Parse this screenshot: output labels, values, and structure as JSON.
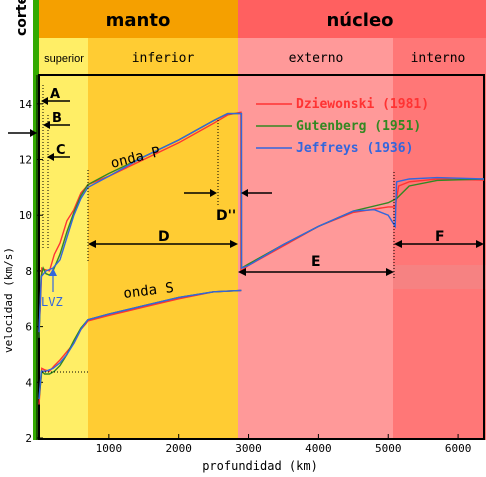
{
  "header": {
    "crust_label": "corteza",
    "mantle_label": "manto",
    "core_label": "núcleo",
    "upper_mantle_label": "superior",
    "lower_mantle_label": "inferior",
    "outer_core_label": "externo",
    "inner_core_label": "interno"
  },
  "colors": {
    "crust": "#33aa00",
    "mantle_header": "#f5a000",
    "core_header": "#ff6060",
    "upper_mantle": "#ffee66",
    "lower_mantle": "#ffcc33",
    "outer_core": "#ff9999",
    "inner_core": "#ff7777",
    "dziewonski": "#ff3333",
    "gutenberg": "#338822",
    "jeffreys": "#3366dd"
  },
  "chart_data": {
    "type": "line",
    "xlabel": "profundidad (km)",
    "ylabel": "velocidad (km/s)",
    "xlim": [
      0,
      6371
    ],
    "ylim": [
      2,
      15
    ],
    "xticks": [
      1000,
      2000,
      3000,
      4000,
      5000,
      6000
    ],
    "yticks": [
      2,
      4,
      6,
      8,
      10,
      12,
      14
    ],
    "legend_position": "top-right",
    "legend": [
      "Dziewonski (1981)",
      "Gutenberg (1951)",
      "Jeffreys (1936)"
    ],
    "annotations": {
      "p_wave": "onda P",
      "s_wave": "onda S",
      "lvz": "LVZ",
      "a": "A",
      "b": "B",
      "c": "C",
      "d": "D",
      "d2": "D''",
      "e": "E",
      "f": "F"
    },
    "series": [
      {
        "name": "Dziewonski (1981)",
        "wave": "P",
        "x": [
          0,
          20,
          40,
          80,
          150,
          220,
          300,
          400,
          500,
          600,
          670,
          700,
          1000,
          1500,
          2000,
          2500,
          2700,
          2890,
          2891,
          3000,
          3500,
          4000,
          4500,
          5000,
          5100,
          5150,
          5300,
          5700,
          6371
        ],
        "y": [
          5.8,
          6.8,
          8.1,
          8.05,
          8.0,
          8.6,
          9.0,
          9.8,
          10.2,
          10.8,
          11.0,
          11.1,
          11.4,
          12.0,
          12.6,
          13.3,
          13.6,
          13.7,
          8.0,
          8.2,
          8.9,
          9.6,
          10.1,
          10.3,
          10.3,
          11.05,
          11.2,
          11.3,
          11.26
        ]
      },
      {
        "name": "Dziewonski (1981)",
        "wave": "S",
        "x": [
          0,
          20,
          40,
          80,
          150,
          220,
          300,
          400,
          500,
          600,
          670,
          700,
          1000,
          1500,
          2000,
          2500,
          2891
        ],
        "y": [
          3.2,
          3.9,
          4.5,
          4.45,
          4.4,
          4.6,
          4.8,
          5.1,
          5.4,
          5.9,
          6.1,
          6.2,
          6.4,
          6.7,
          7.0,
          7.25,
          7.3
        ]
      },
      {
        "name": "Gutenberg (1951)",
        "wave": "P",
        "x": [
          0,
          30,
          60,
          100,
          150,
          200,
          300,
          400,
          500,
          600,
          700,
          1000,
          1500,
          2000,
          2500,
          2700,
          2898,
          2899,
          3000,
          3500,
          4000,
          4500,
          5000,
          5120,
          5300,
          5700,
          6371
        ],
        "y": [
          5.6,
          7.8,
          8.1,
          7.9,
          7.85,
          8.0,
          8.6,
          9.4,
          10.1,
          10.7,
          11.1,
          11.5,
          12.1,
          12.7,
          13.4,
          13.65,
          13.65,
          8.1,
          8.25,
          8.95,
          9.6,
          10.15,
          10.45,
          10.6,
          11.05,
          11.25,
          11.3
        ]
      },
      {
        "name": "Gutenberg (1951)",
        "wave": "S",
        "x": [
          0,
          40,
          80,
          150,
          220,
          300,
          400,
          500,
          600,
          700,
          1000,
          1500,
          2000,
          2500,
          2899
        ],
        "y": [
          3.4,
          4.4,
          4.3,
          4.3,
          4.4,
          4.6,
          5.0,
          5.5,
          5.95,
          6.25,
          6.45,
          6.75,
          7.05,
          7.25,
          7.3
        ]
      },
      {
        "name": "Jeffreys (1936)",
        "wave": "P",
        "x": [
          0,
          33,
          100,
          200,
          300,
          400,
          500,
          600,
          700,
          1000,
          1500,
          2000,
          2500,
          2700,
          2898,
          2899,
          3000,
          3500,
          4000,
          4500,
          4800,
          5000,
          5100,
          5120,
          5300,
          5700,
          6371
        ],
        "y": [
          5.8,
          7.8,
          8.0,
          8.1,
          8.4,
          9.2,
          10.0,
          10.6,
          11.0,
          11.4,
          12.1,
          12.7,
          13.4,
          13.65,
          13.65,
          8.1,
          8.2,
          8.95,
          9.6,
          10.15,
          10.2,
          10.0,
          9.6,
          11.2,
          11.3,
          11.35,
          11.3
        ]
      },
      {
        "name": "Jeffreys (1936)",
        "wave": "S",
        "x": [
          0,
          33,
          100,
          200,
          300,
          400,
          500,
          600,
          700,
          1000,
          1500,
          2000,
          2500,
          2898
        ],
        "y": [
          3.4,
          4.4,
          4.4,
          4.5,
          4.7,
          5.0,
          5.4,
          5.9,
          6.25,
          6.45,
          6.75,
          7.05,
          7.25,
          7.3
        ]
      }
    ]
  }
}
